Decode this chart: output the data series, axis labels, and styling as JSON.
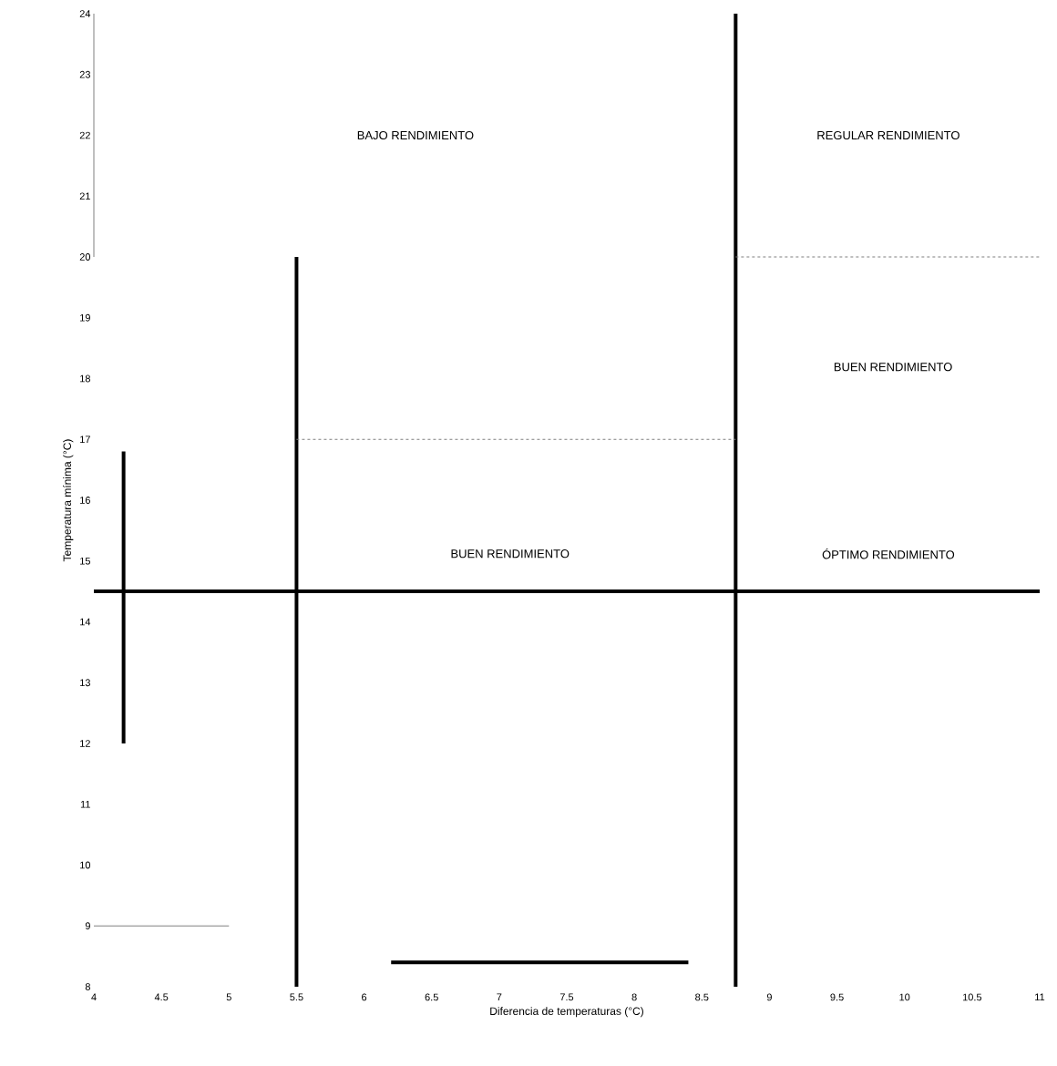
{
  "chart_data": {
    "type": "line",
    "xlabel": "Diferencia de temperaturas (°C)",
    "ylabel": "Temperatura mínima (°C)",
    "xlim": [
      4,
      11
    ],
    "ylim": [
      8,
      24
    ],
    "xticks": [
      4,
      4.5,
      5,
      5.5,
      6,
      6.5,
      7,
      7.5,
      8,
      8.5,
      9,
      9.5,
      10,
      10.5,
      11
    ],
    "yticks": [
      8,
      9,
      10,
      11,
      12,
      13,
      14,
      15,
      16,
      17,
      18,
      19,
      20,
      21,
      22,
      23,
      24
    ],
    "grid": false,
    "series": [
      {
        "color": "#000000",
        "line_style": "solid",
        "x": [
          5.5,
          5.5
        ],
        "values": [
          8,
          20
        ]
      },
      {
        "color": "#000000",
        "line_style": "solid",
        "x": [
          8.75,
          8.75
        ],
        "values": [
          8,
          24
        ]
      },
      {
        "color": "#000000",
        "line_style": "solid",
        "x": [
          4,
          11
        ],
        "values": [
          14.5,
          14.5
        ]
      },
      {
        "color": "#808080",
        "line_style": "dashed",
        "x": [
          5.5,
          8.75
        ],
        "values": [
          17,
          17
        ]
      },
      {
        "color": "#808080",
        "line_style": "dashed",
        "x": [
          8.75,
          11
        ],
        "values": [
          20,
          20
        ]
      },
      {
        "color": "#808080",
        "line_style": "solid",
        "x": [
          4,
          5
        ],
        "values": [
          9,
          9
        ]
      },
      {
        "color": "#808080",
        "line_style": "solid",
        "x": [
          4,
          4
        ],
        "values": [
          20,
          24
        ]
      },
      {
        "color": "#000000",
        "line_style": "solid",
        "x": [
          4.22,
          4.22
        ],
        "values": [
          16.8,
          12
        ]
      },
      {
        "color": "#000000",
        "line_style": "solid",
        "x": [
          6.2,
          8.4
        ],
        "values": [
          8.4,
          8.4
        ]
      }
    ],
    "annotations": [
      "BAJO RENDIMIENTO",
      "REGULAR RENDIMIENTO",
      "BUEN RENDIMIENTO",
      "BUEN RENDIMIENTO",
      "ÓPTIMO RENDIMIENTO"
    ]
  }
}
